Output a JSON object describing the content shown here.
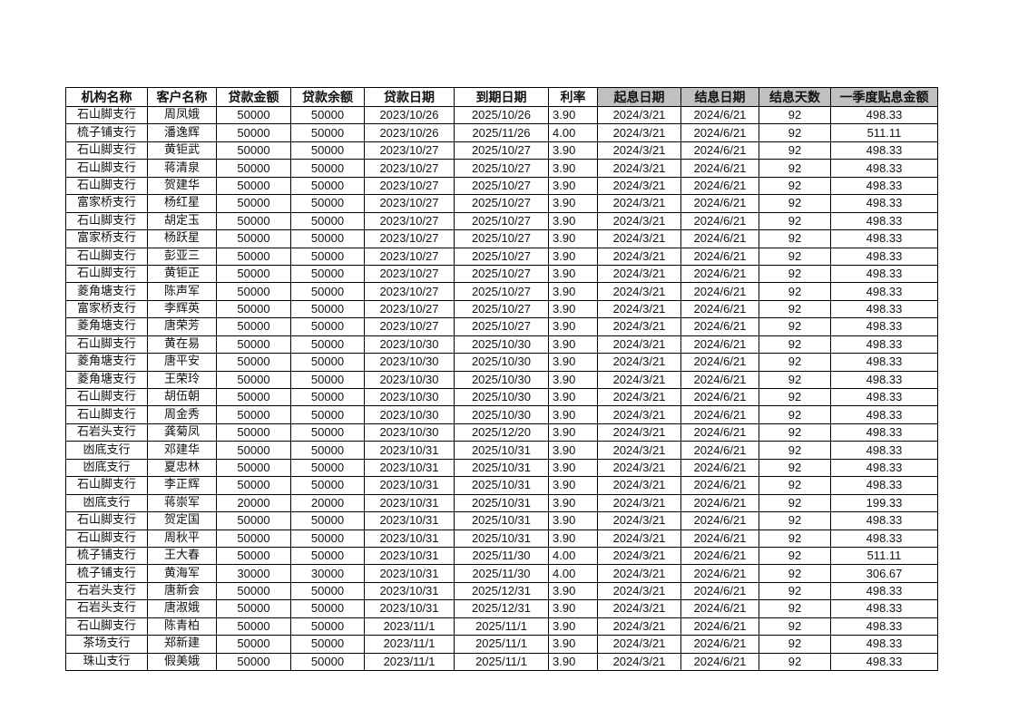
{
  "headers": [
    "机构名称",
    "客户名称",
    "贷款金额",
    "贷款余额",
    "贷款日期",
    "到期日期",
    "利率",
    "起息日期",
    "结息日期",
    "结息天数",
    "一季度贴息金额"
  ],
  "header_gray_from": 7,
  "header_gray_color": "#c0c0c0",
  "rows": [
    [
      "石山脚支行",
      "周凤娥",
      "50000",
      "50000",
      "2023/10/26",
      "2025/10/26",
      "3.90",
      "2024/3/21",
      "2024/6/21",
      "92",
      "498.33"
    ],
    [
      "梳子铺支行",
      "潘逸辉",
      "50000",
      "50000",
      "2023/10/26",
      "2025/11/26",
      "4.00",
      "2024/3/21",
      "2024/6/21",
      "92",
      "511.11"
    ],
    [
      "石山脚支行",
      "黄钜武",
      "50000",
      "50000",
      "2023/10/27",
      "2025/10/27",
      "3.90",
      "2024/3/21",
      "2024/6/21",
      "92",
      "498.33"
    ],
    [
      "石山脚支行",
      "蒋清泉",
      "50000",
      "50000",
      "2023/10/27",
      "2025/10/27",
      "3.90",
      "2024/3/21",
      "2024/6/21",
      "92",
      "498.33"
    ],
    [
      "石山脚支行",
      "贺建华",
      "50000",
      "50000",
      "2023/10/27",
      "2025/10/27",
      "3.90",
      "2024/3/21",
      "2024/6/21",
      "92",
      "498.33"
    ],
    [
      "富家桥支行",
      "杨红星",
      "50000",
      "50000",
      "2023/10/27",
      "2025/10/27",
      "3.90",
      "2024/3/21",
      "2024/6/21",
      "92",
      "498.33"
    ],
    [
      "石山脚支行",
      "胡定玉",
      "50000",
      "50000",
      "2023/10/27",
      "2025/10/27",
      "3.90",
      "2024/3/21",
      "2024/6/21",
      "92",
      "498.33"
    ],
    [
      "富家桥支行",
      "杨跃星",
      "50000",
      "50000",
      "2023/10/27",
      "2025/10/27",
      "3.90",
      "2024/3/21",
      "2024/6/21",
      "92",
      "498.33"
    ],
    [
      "石山脚支行",
      "彭亚三",
      "50000",
      "50000",
      "2023/10/27",
      "2025/10/27",
      "3.90",
      "2024/3/21",
      "2024/6/21",
      "92",
      "498.33"
    ],
    [
      "石山脚支行",
      "黄钜正",
      "50000",
      "50000",
      "2023/10/27",
      "2025/10/27",
      "3.90",
      "2024/3/21",
      "2024/6/21",
      "92",
      "498.33"
    ],
    [
      "菱角塘支行",
      "陈声军",
      "50000",
      "50000",
      "2023/10/27",
      "2025/10/27",
      "3.90",
      "2024/3/21",
      "2024/6/21",
      "92",
      "498.33"
    ],
    [
      "富家桥支行",
      "李辉英",
      "50000",
      "50000",
      "2023/10/27",
      "2025/10/27",
      "3.90",
      "2024/3/21",
      "2024/6/21",
      "92",
      "498.33"
    ],
    [
      "菱角塘支行",
      "唐荣芳",
      "50000",
      "50000",
      "2023/10/27",
      "2025/10/27",
      "3.90",
      "2024/3/21",
      "2024/6/21",
      "92",
      "498.33"
    ],
    [
      "石山脚支行",
      "黄在易",
      "50000",
      "50000",
      "2023/10/30",
      "2025/10/30",
      "3.90",
      "2024/3/21",
      "2024/6/21",
      "92",
      "498.33"
    ],
    [
      "菱角塘支行",
      "唐平安",
      "50000",
      "50000",
      "2023/10/30",
      "2025/10/30",
      "3.90",
      "2024/3/21",
      "2024/6/21",
      "92",
      "498.33"
    ],
    [
      "菱角塘支行",
      "王荣玲",
      "50000",
      "50000",
      "2023/10/30",
      "2025/10/30",
      "3.90",
      "2024/3/21",
      "2024/6/21",
      "92",
      "498.33"
    ],
    [
      "石山脚支行",
      "胡伍朝",
      "50000",
      "50000",
      "2023/10/30",
      "2025/10/30",
      "3.90",
      "2024/3/21",
      "2024/6/21",
      "92",
      "498.33"
    ],
    [
      "石山脚支行",
      "周金秀",
      "50000",
      "50000",
      "2023/10/30",
      "2025/10/30",
      "3.90",
      "2024/3/21",
      "2024/6/21",
      "92",
      "498.33"
    ],
    [
      "石岩头支行",
      "龚菊凤",
      "50000",
      "50000",
      "2023/10/30",
      "2025/12/20",
      "3.90",
      "2024/3/21",
      "2024/6/21",
      "92",
      "498.33"
    ],
    [
      "凼底支行",
      "邓建华",
      "50000",
      "50000",
      "2023/10/31",
      "2025/10/31",
      "3.90",
      "2024/3/21",
      "2024/6/21",
      "92",
      "498.33"
    ],
    [
      "凼底支行",
      "夏忠林",
      "50000",
      "50000",
      "2023/10/31",
      "2025/10/31",
      "3.90",
      "2024/3/21",
      "2024/6/21",
      "92",
      "498.33"
    ],
    [
      "石山脚支行",
      "李正辉",
      "50000",
      "50000",
      "2023/10/31",
      "2025/10/31",
      "3.90",
      "2024/3/21",
      "2024/6/21",
      "92",
      "498.33"
    ],
    [
      "凼底支行",
      "蒋崇军",
      "20000",
      "20000",
      "2023/10/31",
      "2025/10/31",
      "3.90",
      "2024/3/21",
      "2024/6/21",
      "92",
      "199.33"
    ],
    [
      "石山脚支行",
      "贺定国",
      "50000",
      "50000",
      "2023/10/31",
      "2025/10/31",
      "3.90",
      "2024/3/21",
      "2024/6/21",
      "92",
      "498.33"
    ],
    [
      "石山脚支行",
      "周秋平",
      "50000",
      "50000",
      "2023/10/31",
      "2025/10/31",
      "3.90",
      "2024/3/21",
      "2024/6/21",
      "92",
      "498.33"
    ],
    [
      "梳子铺支行",
      "王大春",
      "50000",
      "50000",
      "2023/10/31",
      "2025/11/30",
      "4.00",
      "2024/3/21",
      "2024/6/21",
      "92",
      "511.11"
    ],
    [
      "梳子铺支行",
      "黄海军",
      "30000",
      "30000",
      "2023/10/31",
      "2025/11/30",
      "4.00",
      "2024/3/21",
      "2024/6/21",
      "92",
      "306.67"
    ],
    [
      "石岩头支行",
      "唐新会",
      "50000",
      "50000",
      "2023/10/31",
      "2025/12/31",
      "3.90",
      "2024/3/21",
      "2024/6/21",
      "92",
      "498.33"
    ],
    [
      "石岩头支行",
      "唐淑娥",
      "50000",
      "50000",
      "2023/10/31",
      "2025/12/31",
      "3.90",
      "2024/3/21",
      "2024/6/21",
      "92",
      "498.33"
    ],
    [
      "石山脚支行",
      "陈青柏",
      "50000",
      "50000",
      "2023/11/1",
      "2025/11/1",
      "3.90",
      "2024/3/21",
      "2024/6/21",
      "92",
      "498.33"
    ],
    [
      "茶场支行",
      "郑新建",
      "50000",
      "50000",
      "2023/11/1",
      "2025/11/1",
      "3.90",
      "2024/3/21",
      "2024/6/21",
      "92",
      "498.33"
    ],
    [
      "珠山支行",
      "假美娥",
      "50000",
      "50000",
      "2023/11/1",
      "2025/11/1",
      "3.90",
      "2024/3/21",
      "2024/6/21",
      "92",
      "498.33"
    ]
  ]
}
